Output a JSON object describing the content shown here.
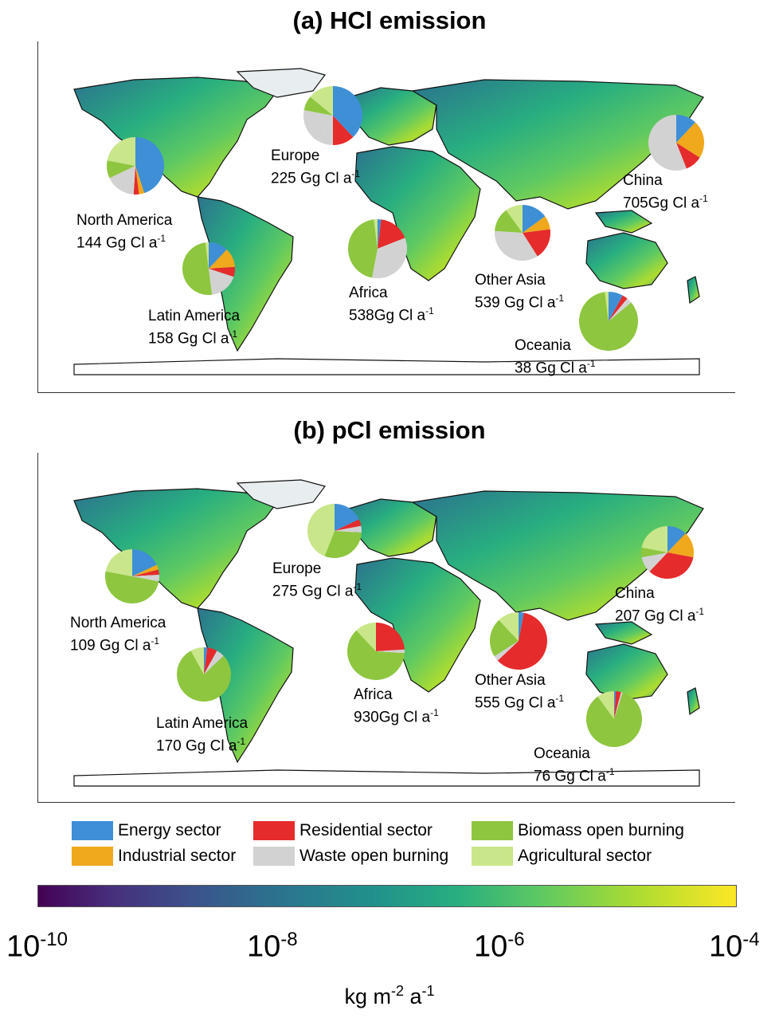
{
  "panels": [
    {
      "title": "(a) HCl emission",
      "regions": [
        {
          "name": "North America",
          "amount": "144 Gg Cl a",
          "exponent": "-1",
          "shares": [
            45,
            3,
            3,
            0,
            17,
            10,
            22
          ]
        },
        {
          "name": "Europe",
          "amount": "225 Gg Cl a",
          "exponent": "-1",
          "shares": [
            38,
            0,
            12,
            8,
            20,
            8,
            14
          ]
        },
        {
          "name": "Latin America",
          "amount": "158 Gg Cl a",
          "exponent": "-1",
          "shares": [
            12,
            12,
            6,
            0,
            18,
            50,
            2
          ]
        },
        {
          "name": "Africa",
          "amount": "538Gg Cl a",
          "exponent": "-1",
          "shares": [
            2,
            0,
            17,
            0,
            34,
            45,
            2
          ]
        },
        {
          "name": "Other Asia",
          "amount": "539 Gg Cl a",
          "exponent": "-1",
          "shares": [
            15,
            8,
            18,
            0,
            35,
            14,
            10
          ]
        },
        {
          "name": "China",
          "amount": "705Gg Cl a",
          "exponent": "-1",
          "shares": [
            12,
            22,
            10,
            0,
            56,
            0,
            0
          ]
        },
        {
          "name": "Oceania",
          "amount": "38 Gg Cl a",
          "exponent": "-1",
          "shares": [
            8,
            0,
            3,
            0,
            3,
            84,
            2
          ]
        }
      ]
    },
    {
      "title": "(b) pCl emission",
      "regions": [
        {
          "name": "North America",
          "amount": "109 Gg Cl a",
          "exponent": "-1",
          "shares": [
            18,
            3,
            3,
            0,
            4,
            50,
            22
          ]
        },
        {
          "name": "Europe",
          "amount": "275 Gg Cl a",
          "exponent": "-1",
          "shares": [
            18,
            0,
            4,
            0,
            4,
            30,
            44
          ]
        },
        {
          "name": "Latin America",
          "amount": "170 Gg Cl a",
          "exponent": "-1",
          "shares": [
            2,
            0,
            6,
            0,
            5,
            79,
            8
          ]
        },
        {
          "name": "Africa",
          "amount": "930Gg Cl a",
          "exponent": "-1",
          "shares": [
            0,
            0,
            24,
            0,
            2,
            62,
            12
          ]
        },
        {
          "name": "Other Asia",
          "amount": "555 Gg Cl a",
          "exponent": "-1",
          "shares": [
            3,
            0,
            60,
            0,
            3,
            22,
            12
          ]
        },
        {
          "name": "China",
          "amount": "207 Gg Cl a",
          "exponent": "-1",
          "shares": [
            12,
            16,
            34,
            0,
            10,
            6,
            22
          ]
        },
        {
          "name": "Oceania",
          "amount": "76 Gg Cl a",
          "exponent": "-1",
          "shares": [
            1,
            0,
            3,
            0,
            1,
            85,
            10
          ]
        }
      ]
    }
  ],
  "legend": {
    "items": [
      {
        "label": "Energy sector",
        "color": "#3e8fd6"
      },
      {
        "label": "Industrial sector",
        "color": "#f0a81c"
      },
      {
        "label": "Residential sector",
        "color": "#e52b2b"
      },
      {
        "label": "Waste open burning",
        "color": "#d2d2d2"
      },
      {
        "label": "Biomass open burning",
        "color": "#8ec63f"
      },
      {
        "label": "Agricultural sector",
        "color": "#c9e68a"
      }
    ]
  },
  "pie_order_colors": [
    "#3e8fd6",
    "#f0a81c",
    "#e52b2b",
    "#d2d2d2",
    "#d2d2d2",
    "#8ec63f",
    "#c9e68a"
  ],
  "colorbar": {
    "ticks": [
      {
        "base": "10",
        "exp": "-10"
      },
      {
        "base": "10",
        "exp": "-8"
      },
      {
        "base": "10",
        "exp": "-6"
      },
      {
        "base": "10",
        "exp": "-4"
      }
    ],
    "unit_parts": [
      "kg m",
      "-2",
      " a",
      "-1"
    ],
    "colors": [
      "#440154",
      "#3b528b",
      "#21918c",
      "#5ec962",
      "#fde725"
    ]
  }
}
